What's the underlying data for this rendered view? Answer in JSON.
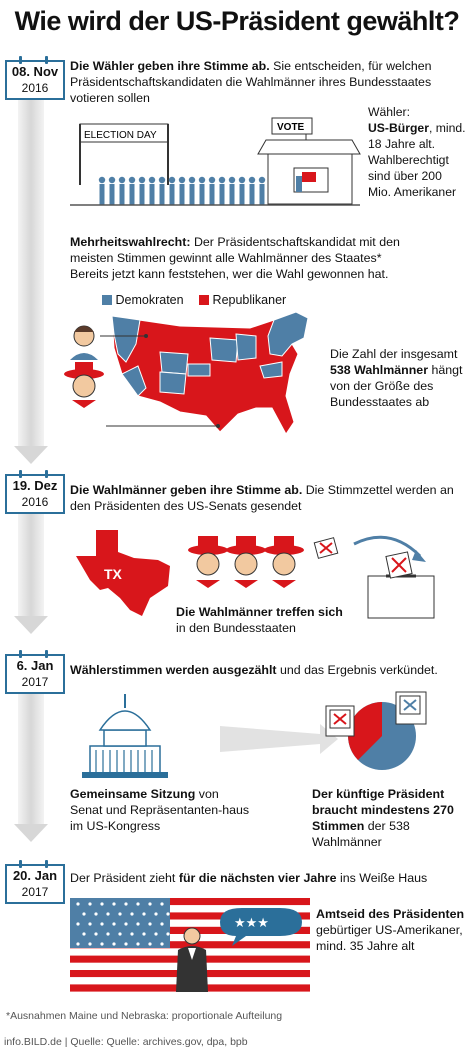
{
  "title": "Wie wird der US-Präsident gewählt?",
  "steps": [
    {
      "date": "08. Nov",
      "year": "2016",
      "bold": "Die Wähler geben ihre Stimme ab.",
      "text": " Sie entscheiden, für welchen Präsidentschaftskandidaten die Wahlmänner ihres Bundesstaates votieren sollen"
    },
    {
      "date": "19. Dez",
      "year": "2016",
      "bold": "Die Wahlmänner geben ihre Stimme ab.",
      "text": " Die Stimmzettel werden an den Präsidenten des  US-Senats gesendet"
    },
    {
      "date": "6. Jan",
      "year": "2017",
      "bold": "Wählerstimmen werden ausgezählt",
      "text": " und das Ergebnis verkündet."
    },
    {
      "date": "20. Jan",
      "year": "2017",
      "pre": "Der Präsident zieht ",
      "bold": "für die nächsten vier Jahre",
      "text": " ins Weiße Haus"
    }
  ],
  "election_day_sign": "ELECTION DAY",
  "vote_sign": "VOTE",
  "voter": {
    "label": "Wähler:",
    "bold": "US-Bürger",
    "rest": ", mind. 18 Jahre alt. Wahlberechtigt sind über 200 Mio. Amerikaner"
  },
  "majority": {
    "bold": "Mehrheitswahlrecht:",
    "text": " Der Präsidentschaftskandidat mit den meisten Stimmen gewinnt alle Wahlmänner des Staates* Bereits jetzt kann feststehen, wer die Wahl gewonnen hat."
  },
  "legend": [
    {
      "label": "Demokraten",
      "color": "#4f7fa6"
    },
    {
      "label": "Republikaner",
      "color": "#d8161b"
    }
  ],
  "electors_info": {
    "pre": "Die Zahl der insgesamt ",
    "bold": "538 Wahlmänner",
    "post": " hängt von der Größe des Bundesstaates ab"
  },
  "tx_label": "TX",
  "electors_meet": {
    "bold": "Die Wahlmänner treffen sich",
    "text": "in den Bundesstaaten"
  },
  "joint_session": {
    "bold": "Gemeinsame Sitzung",
    "text": " von Senat und Repräsentanten-haus im US-Kongress"
  },
  "future_president": {
    "bold": "Der künftige Präsident braucht mindestens 270 Stimmen",
    "text": " der 538 Wahlmänner"
  },
  "oath": {
    "bold": "Amtseid des Präsidenten",
    "text": "gebürtiger US-Amerikaner, mind. 35 Jahre alt"
  },
  "flag_stars": "★★★",
  "footnote": "*Ausnahmen Maine und Nebraska: proportionale Aufteilung",
  "source": "info.BILD.de | Quelle: Quelle: archives.gov, dpa, bpb",
  "colors": {
    "accent": "#2b6f9a",
    "red": "#d8161b",
    "blue": "#4f7fa6"
  }
}
